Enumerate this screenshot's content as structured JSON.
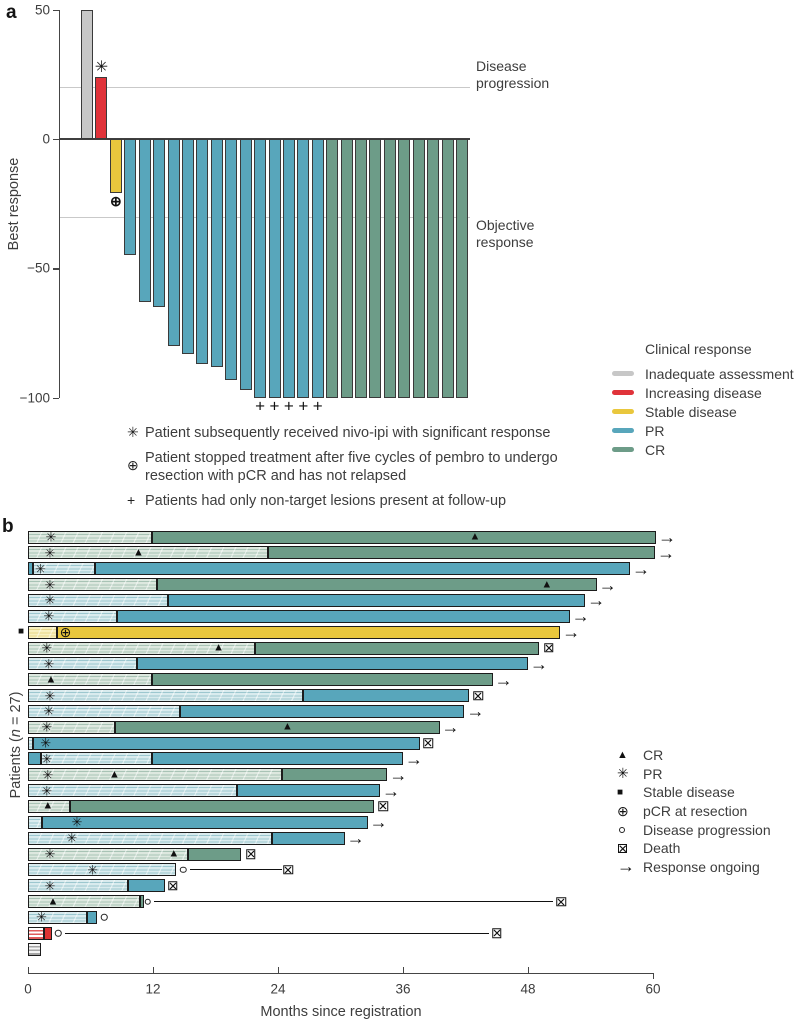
{
  "panel_a_label": "a",
  "panel_b_label": "b",
  "chart_data": [
    {
      "panel": "a",
      "type": "bar",
      "ylabel": "Best response",
      "ylim": [
        -100,
        50
      ],
      "yticks": [
        50,
        0,
        -50,
        -100
      ],
      "reference_lines": [
        {
          "y": 20,
          "label": "Disease progression"
        },
        {
          "y": -30,
          "label": "Objective response"
        }
      ],
      "legend_title": "Clinical response",
      "legend": [
        {
          "label": "Inadequate assessment",
          "color": "#c7c7c7"
        },
        {
          "label": "Increasing disease",
          "color": "#e0333a"
        },
        {
          "label": "Stable disease",
          "color": "#e9c73d"
        },
        {
          "label": "PR",
          "color": "#58a6bb"
        },
        {
          "label": "CR",
          "color": "#6d9c88"
        }
      ],
      "bars": [
        {
          "value": 50,
          "response": "Inadequate assessment"
        },
        {
          "value": 24,
          "response": "Increasing disease",
          "marker": "asterisk"
        },
        {
          "value": -21,
          "response": "Stable disease",
          "marker": "pcr"
        },
        {
          "value": -45,
          "response": "PR"
        },
        {
          "value": -63,
          "response": "PR"
        },
        {
          "value": -65,
          "response": "PR"
        },
        {
          "value": -80,
          "response": "PR"
        },
        {
          "value": -83,
          "response": "PR"
        },
        {
          "value": -87,
          "response": "PR"
        },
        {
          "value": -88,
          "response": "PR"
        },
        {
          "value": -93,
          "response": "PR"
        },
        {
          "value": -97,
          "response": "PR"
        },
        {
          "value": -100,
          "response": "PR",
          "marker": "plus"
        },
        {
          "value": -100,
          "response": "PR",
          "marker": "plus"
        },
        {
          "value": -100,
          "response": "PR",
          "marker": "plus"
        },
        {
          "value": -100,
          "response": "PR",
          "marker": "plus"
        },
        {
          "value": -100,
          "response": "PR",
          "marker": "plus"
        },
        {
          "value": -100,
          "response": "CR"
        },
        {
          "value": -100,
          "response": "CR"
        },
        {
          "value": -100,
          "response": "CR"
        },
        {
          "value": -100,
          "response": "CR"
        },
        {
          "value": -100,
          "response": "CR"
        },
        {
          "value": -100,
          "response": "CR"
        },
        {
          "value": -100,
          "response": "CR"
        },
        {
          "value": -100,
          "response": "CR"
        },
        {
          "value": -100,
          "response": "CR"
        },
        {
          "value": -100,
          "response": "CR"
        }
      ],
      "footnotes": [
        {
          "symbol": "✳",
          "text": "Patient subsequently received nivo-ipi with significant response"
        },
        {
          "symbol": "⊕",
          "text": "Patient stopped treatment after five cycles of pembro to undergo resection with pCR and has not relapsed"
        },
        {
          "symbol": "+",
          "text": "Patients had only non-target lesions present at follow-up"
        }
      ]
    },
    {
      "panel": "b",
      "type": "swimmer",
      "xlabel": "Months since registration",
      "ylabel": "Patients (n = 27)",
      "xlim": [
        0,
        60
      ],
      "xticks": [
        0,
        12,
        24,
        36,
        48,
        60
      ],
      "legend": [
        {
          "marker": "cr",
          "label": "CR"
        },
        {
          "marker": "pr",
          "label": "PR"
        },
        {
          "marker": "sd",
          "label": "Stable disease"
        },
        {
          "marker": "pcr",
          "label": "pCR at resection"
        },
        {
          "marker": "prog",
          "label": "Disease progression"
        },
        {
          "marker": "death",
          "label": "Death"
        },
        {
          "marker": "arrow",
          "label": "Response ongoing"
        }
      ],
      "patients": [
        {
          "segments": [
            [
              "h_green",
              0,
              11.9
            ],
            [
              "f_green",
              11.9,
              60.3
            ]
          ],
          "markers": [
            [
              "pr",
              2.2
            ],
            [
              "cr",
              42.9
            ]
          ],
          "end": "arrow"
        },
        {
          "segments": [
            [
              "h_green",
              0,
              23.0
            ],
            [
              "f_green",
              23.0,
              60.2
            ]
          ],
          "markers": [
            [
              "pr",
              2.1
            ],
            [
              "cr",
              10.6
            ]
          ],
          "end": "arrow"
        },
        {
          "segments": [
            [
              "f_blue",
              0,
              0.5
            ],
            [
              "h_blue",
              0.5,
              6.4
            ],
            [
              "f_blue",
              6.4,
              57.8
            ]
          ],
          "markers": [
            [
              "pr",
              1.2
            ]
          ],
          "end": "arrow"
        },
        {
          "segments": [
            [
              "h_green",
              0,
              12.4
            ],
            [
              "f_green",
              12.4,
              54.6
            ]
          ],
          "markers": [
            [
              "pr",
              2.1
            ],
            [
              "cr",
              49.8
            ]
          ],
          "end": "arrow"
        },
        {
          "segments": [
            [
              "h_blue",
              0,
              13.4
            ],
            [
              "f_blue",
              13.4,
              53.5
            ]
          ],
          "markers": [
            [
              "pr",
              2.1
            ]
          ],
          "end": "arrow"
        },
        {
          "segments": [
            [
              "h_blue",
              0,
              8.5
            ],
            [
              "f_blue",
              8.5,
              52.0
            ]
          ],
          "markers": [
            [
              "pr",
              2.0
            ]
          ],
          "end": "arrow"
        },
        {
          "segments": [
            [
              "h_yellow",
              0,
              2.8
            ],
            [
              "f_yellow",
              2.8,
              51.1
            ]
          ],
          "markers": [
            [
              "sd",
              -0.67
            ],
            [
              "pcr",
              3.6
            ]
          ],
          "end": "arrow"
        },
        {
          "segments": [
            [
              "h_green",
              0,
              21.8
            ],
            [
              "f_green",
              21.8,
              49.1
            ]
          ],
          "markers": [
            [
              "pr",
              1.8
            ],
            [
              "cr",
              18.3
            ],
            [
              "death",
              50.0
            ]
          ]
        },
        {
          "segments": [
            [
              "h_blue",
              0,
              10.5
            ],
            [
              "f_blue",
              10.5,
              48.0
            ]
          ],
          "markers": [
            [
              "pr",
              2.0
            ]
          ],
          "end": "arrow"
        },
        {
          "segments": [
            [
              "h_green",
              0,
              11.9
            ],
            [
              "f_green",
              11.9,
              44.6
            ]
          ],
          "markers": [
            [
              "cr",
              2.2
            ]
          ],
          "end": "arrow"
        },
        {
          "segments": [
            [
              "h_blue",
              0,
              26.4
            ],
            [
              "f_blue",
              26.4,
              42.3
            ]
          ],
          "markers": [
            [
              "pr",
              2.1
            ],
            [
              "death",
              43.2
            ]
          ]
        },
        {
          "segments": [
            [
              "h_blue",
              0,
              14.6
            ],
            [
              "f_blue",
              14.6,
              41.9
            ]
          ],
          "markers": [
            [
              "pr",
              2.0
            ]
          ],
          "end": "arrow"
        },
        {
          "segments": [
            [
              "h_green",
              0,
              8.3
            ],
            [
              "f_green",
              8.3,
              39.5
            ]
          ],
          "markers": [
            [
              "pr",
              1.8
            ],
            [
              "cr",
              24.9
            ]
          ],
          "end": "arrow"
        },
        {
          "segments": [
            [
              "h_blue",
              0,
              0.5
            ],
            [
              "f_blue",
              0.5,
              37.6
            ]
          ],
          "markers": [
            [
              "pr",
              1.7
            ],
            [
              "death",
              38.4
            ]
          ]
        },
        {
          "segments": [
            [
              "f_blue",
              0,
              1.2
            ],
            [
              "h_blue",
              1.2,
              11.9
            ],
            [
              "f_blue",
              11.9,
              36.0
            ]
          ],
          "markers": [
            [
              "pr",
              1.8
            ]
          ],
          "end": "arrow"
        },
        {
          "segments": [
            [
              "h_green",
              0,
              24.4
            ],
            [
              "f_green",
              24.4,
              34.5
            ]
          ],
          "markers": [
            [
              "pr",
              1.9
            ],
            [
              "cr",
              8.3
            ]
          ],
          "end": "arrow"
        },
        {
          "segments": [
            [
              "h_blue",
              0,
              20.1
            ],
            [
              "f_blue",
              20.1,
              33.8
            ]
          ],
          "markers": [
            [
              "pr",
              1.8
            ]
          ],
          "end": "arrow"
        },
        {
          "segments": [
            [
              "h_green",
              0,
              4.0
            ],
            [
              "f_green",
              4.0,
              33.2
            ]
          ],
          "markers": [
            [
              "cr",
              1.9
            ],
            [
              "death",
              34.1
            ]
          ]
        },
        {
          "segments": [
            [
              "h_blue",
              0,
              1.3
            ],
            [
              "f_blue",
              1.3,
              32.6
            ]
          ],
          "markers": [
            [
              "pr",
              4.7
            ]
          ],
          "end": "arrow"
        },
        {
          "segments": [
            [
              "h_blue",
              0,
              23.4
            ],
            [
              "f_blue",
              23.4,
              30.4
            ]
          ],
          "markers": [
            [
              "pr",
              4.2
            ]
          ],
          "end": "arrow"
        },
        {
          "segments": [
            [
              "h_green",
              0,
              15.4
            ],
            [
              "f_green",
              15.4,
              20.5
            ]
          ],
          "markers": [
            [
              "pr",
              2.1
            ],
            [
              "cr",
              14.0
            ],
            [
              "death",
              21.4
            ]
          ]
        },
        {
          "segments": [
            [
              "h_blue",
              0,
              14.2
            ]
          ],
          "markers": [
            [
              "pr",
              6.2
            ],
            [
              "prog",
              14.9
            ],
            [
              "death",
              25.0
            ]
          ],
          "line": [
            15.5,
            24.4
          ]
        },
        {
          "segments": [
            [
              "h_blue",
              0,
              9.6
            ],
            [
              "f_blue",
              9.6,
              13.1
            ]
          ],
          "markers": [
            [
              "pr",
              2.1
            ],
            [
              "death",
              13.9
            ]
          ]
        },
        {
          "segments": [
            [
              "h_green",
              0,
              10.7
            ],
            [
              "f_green",
              10.7,
              11.1
            ]
          ],
          "markers": [
            [
              "cr",
              2.4
            ],
            [
              "prog",
              11.5
            ],
            [
              "death",
              51.2
            ]
          ],
          "line": [
            12.1,
            50.4
          ]
        },
        {
          "segments": [
            [
              "h_blue",
              0,
              5.7
            ],
            [
              "f_blue",
              5.7,
              6.6
            ]
          ],
          "markers": [
            [
              "pr",
              1.3
            ],
            [
              "prog",
              7.3
            ]
          ]
        },
        {
          "segments": [
            [
              "h_red",
              0,
              1.5
            ],
            [
              "f_red",
              1.5,
              2.3
            ]
          ],
          "markers": [
            [
              "prog",
              2.9
            ],
            [
              "death",
              45.0
            ]
          ],
          "line": [
            3.5,
            44.2
          ]
        },
        {
          "segments": [
            [
              "h_gray",
              0,
              1.2
            ]
          ],
          "markers": []
        }
      ]
    }
  ]
}
